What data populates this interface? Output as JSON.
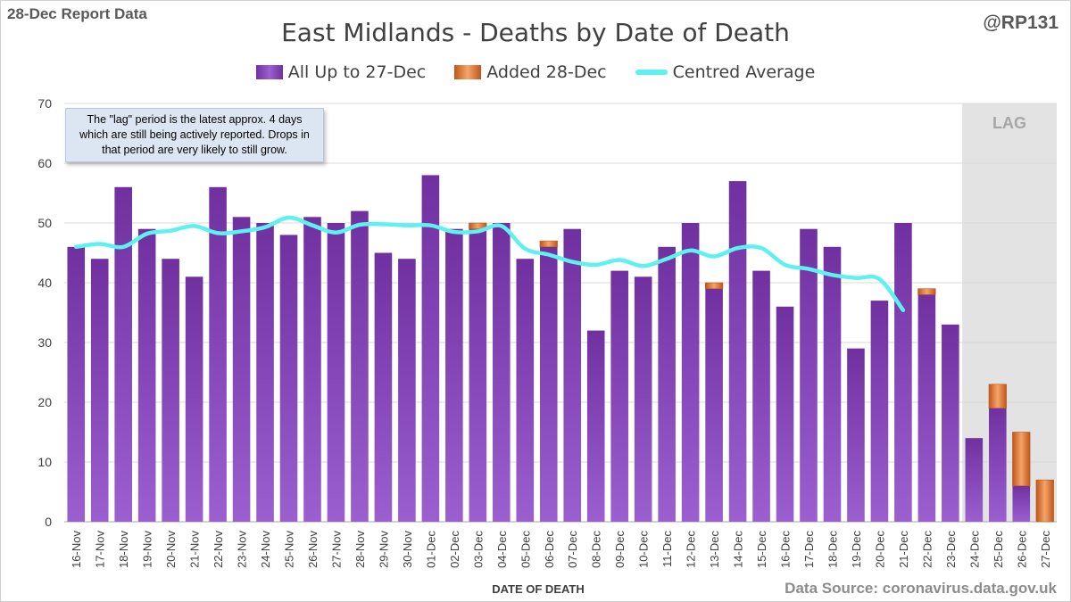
{
  "header": {
    "report_label": "28-Dec Report Data",
    "handle": "@RP131",
    "source": "Data Source: coronavirus.data.gov.uk",
    "note": "The \"lag\" period is the latest approx. 4 days which are still being actively reported.  Drops in that period are very likely to still grow."
  },
  "colors": {
    "base": "#7030a0",
    "added": "#e07b39",
    "average": "#5ff0f0",
    "lag_shade": "#e3e3e3"
  },
  "chart_data": {
    "type": "bar",
    "title": "East Midlands - Deaths by Date of Death",
    "xlabel": "DATE OF DEATH",
    "ylabel": "",
    "ylim": [
      0,
      70
    ],
    "yticks": [
      0,
      10,
      20,
      30,
      40,
      50,
      60,
      70
    ],
    "stacked": true,
    "grid": true,
    "legend_position": "top",
    "lag_label": "LAG",
    "lag_categories": [
      "24-Dec",
      "25-Dec",
      "26-Dec",
      "27-Dec"
    ],
    "categories": [
      "16-Nov",
      "17-Nov",
      "18-Nov",
      "19-Nov",
      "20-Nov",
      "21-Nov",
      "22-Nov",
      "23-Nov",
      "24-Nov",
      "25-Nov",
      "26-Nov",
      "27-Nov",
      "28-Nov",
      "29-Nov",
      "30-Nov",
      "01-Dec",
      "02-Dec",
      "03-Dec",
      "04-Dec",
      "05-Dec",
      "06-Dec",
      "07-Dec",
      "08-Dec",
      "09-Dec",
      "10-Dec",
      "11-Dec",
      "12-Dec",
      "13-Dec",
      "14-Dec",
      "15-Dec",
      "16-Dec",
      "17-Dec",
      "18-Dec",
      "19-Dec",
      "20-Dec",
      "21-Dec",
      "22-Dec",
      "23-Dec",
      "24-Dec",
      "25-Dec",
      "26-Dec",
      "27-Dec"
    ],
    "series": [
      {
        "name": "All Up to 27-Dec",
        "kind": "bar",
        "values": [
          46,
          44,
          56,
          49,
          44,
          41,
          56,
          51,
          50,
          48,
          51,
          50,
          52,
          45,
          44,
          58,
          49,
          49,
          50,
          44,
          46,
          49,
          32,
          42,
          41,
          46,
          50,
          39,
          57,
          42,
          36,
          49,
          46,
          29,
          37,
          50,
          38,
          33,
          14,
          19,
          6,
          0
        ]
      },
      {
        "name": "Added 28-Dec",
        "kind": "bar",
        "values": [
          0,
          0,
          0,
          0,
          0,
          0,
          0,
          0,
          0,
          0,
          0,
          0,
          0,
          0,
          0,
          0,
          0,
          1,
          0,
          0,
          1,
          0,
          0,
          0,
          0,
          0,
          0,
          1,
          0,
          0,
          0,
          0,
          0,
          0,
          0,
          0,
          1,
          0,
          0,
          4,
          9,
          7
        ]
      },
      {
        "name": "Centred Average",
        "kind": "line",
        "values": [
          46.0,
          46.5,
          46.0,
          48.2,
          48.7,
          49.5,
          48.3,
          48.6,
          49.3,
          50.9,
          49.6,
          48.4,
          49.7,
          49.8,
          49.6,
          49.6,
          48.5,
          48.6,
          49.5,
          45.7,
          44.7,
          43.5,
          43.0,
          43.8,
          42.8,
          44.0,
          45.4,
          44.4,
          45.8,
          45.8,
          43.0,
          42.3,
          41.3,
          40.8,
          40.6,
          35.4,
          null,
          null,
          null,
          null,
          null,
          null
        ]
      }
    ]
  }
}
